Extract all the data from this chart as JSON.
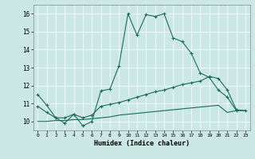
{
  "xlabel": "Humidex (Indice chaleur)",
  "xlim": [
    -0.5,
    23.5
  ],
  "ylim": [
    9.5,
    16.5
  ],
  "yticks": [
    10,
    11,
    12,
    13,
    14,
    15,
    16
  ],
  "xticks": [
    0,
    1,
    2,
    3,
    4,
    5,
    6,
    7,
    8,
    9,
    10,
    11,
    12,
    13,
    14,
    15,
    16,
    17,
    18,
    19,
    20,
    21,
    22,
    23
  ],
  "bg_color": "#cce8e5",
  "line_color": "#1a6b5e",
  "line1_x": [
    0,
    1,
    2,
    3,
    4,
    5,
    6,
    7,
    8,
    9,
    10,
    11,
    12,
    13,
    14,
    15,
    16,
    17,
    18,
    19,
    20,
    21,
    22
  ],
  "line1_y": [
    11.5,
    10.9,
    10.2,
    9.9,
    10.4,
    9.75,
    10.0,
    11.7,
    11.8,
    13.1,
    16.0,
    14.8,
    15.95,
    15.85,
    16.0,
    14.65,
    14.45,
    13.8,
    12.7,
    12.45,
    11.75,
    11.35,
    10.6
  ],
  "line2_x": [
    0,
    1,
    2,
    3,
    4,
    5,
    6,
    7,
    8,
    9,
    10,
    11,
    12,
    13,
    14,
    15,
    16,
    17,
    18,
    19,
    20,
    21,
    22,
    23
  ],
  "line2_y": [
    10.85,
    10.5,
    10.2,
    10.2,
    10.4,
    10.2,
    10.35,
    10.85,
    10.95,
    11.05,
    11.2,
    11.35,
    11.5,
    11.65,
    11.75,
    11.9,
    12.05,
    12.15,
    12.25,
    12.5,
    12.4,
    11.75,
    10.65,
    10.6
  ],
  "line3_x": [
    0,
    1,
    2,
    3,
    4,
    5,
    6,
    7,
    8,
    9,
    10,
    11,
    12,
    13,
    14,
    15,
    16,
    17,
    18,
    19,
    20,
    21,
    22,
    23
  ],
  "line3_y": [
    10.0,
    10.0,
    10.05,
    10.05,
    10.1,
    10.1,
    10.15,
    10.2,
    10.25,
    10.35,
    10.4,
    10.45,
    10.5,
    10.55,
    10.6,
    10.65,
    10.7,
    10.75,
    10.8,
    10.85,
    10.9,
    10.5,
    10.6,
    10.6
  ]
}
